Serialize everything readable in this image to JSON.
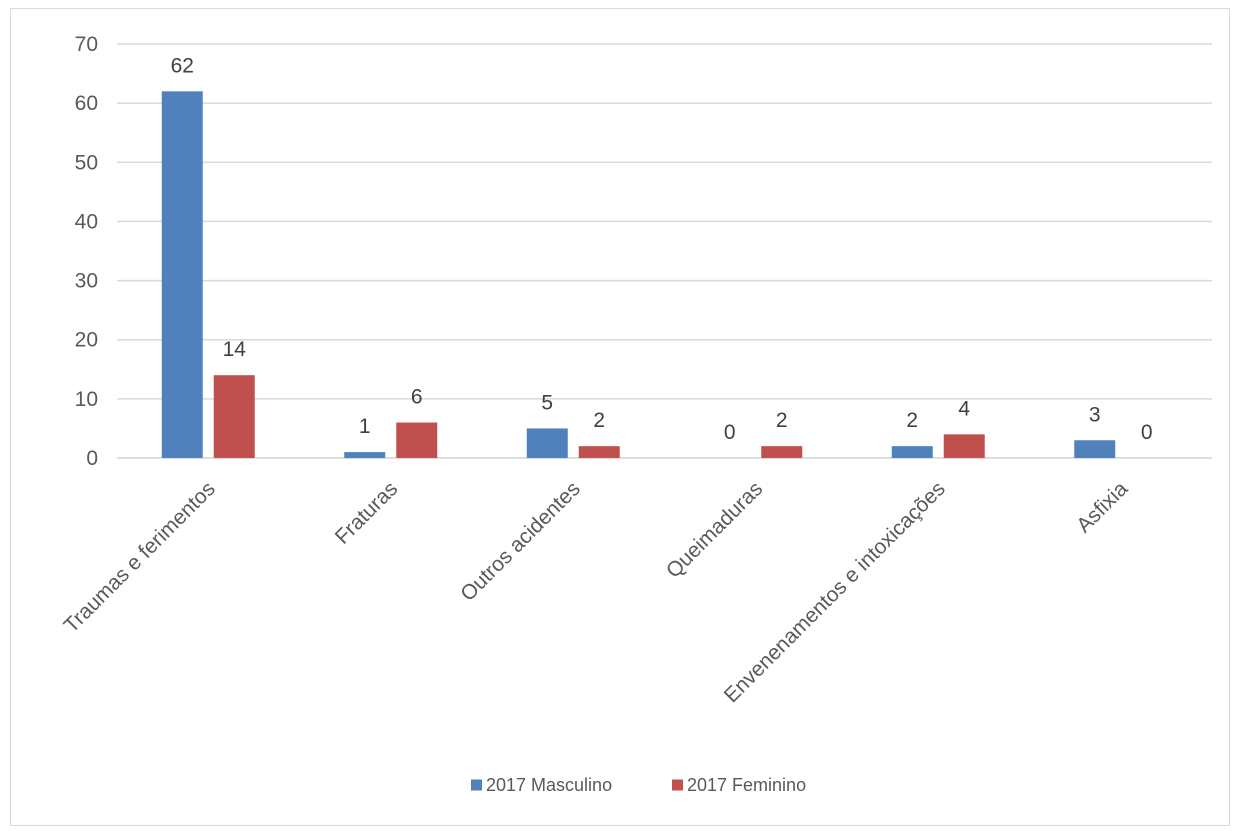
{
  "chart_data": {
    "type": "bar",
    "title": "",
    "xlabel": "",
    "ylabel": "",
    "categories": [
      "Traumas e ferimentos",
      "Fraturas",
      "Outros acidentes",
      "Queimaduras",
      "Envenenamentos e intoxicações",
      "Asfixia"
    ],
    "series": [
      {
        "name": "2017 Masculino",
        "color": "#4f81bd",
        "values": [
          62,
          1,
          5,
          0,
          2,
          3
        ]
      },
      {
        "name": "2017 Feminino",
        "color": "#c0504d",
        "values": [
          14,
          6,
          2,
          2,
          4,
          0
        ]
      }
    ],
    "ylim": [
      0,
      70
    ],
    "yticks": [
      0,
      10,
      20,
      30,
      40,
      50,
      60,
      70
    ],
    "grid": true,
    "data_labels": true,
    "legend_position": "bottom",
    "gridline_color": "#d9d9d9"
  }
}
